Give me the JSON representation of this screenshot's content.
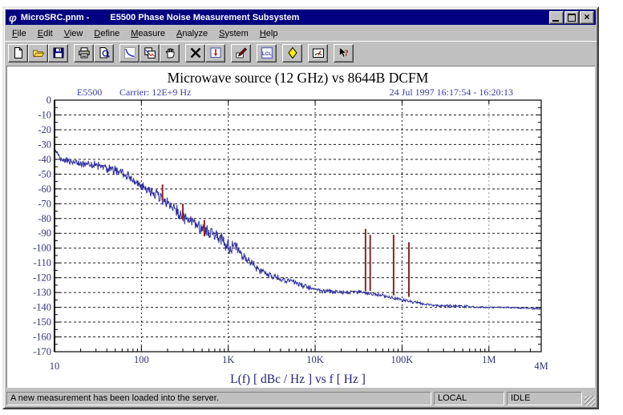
{
  "window": {
    "title_doc": "MicroSRC.pnm -",
    "title_app": "E5500 Phase Noise Measurement Subsystem",
    "icon": "phi-app-icon",
    "buttons": [
      "minimize",
      "maximize",
      "close"
    ]
  },
  "menu": {
    "items": [
      "File",
      "Edit",
      "View",
      "Define",
      "Measure",
      "Analyze",
      "System",
      "Help"
    ]
  },
  "toolbar": {
    "groups": [
      [
        {
          "name": "new",
          "icon": "new-page-icon"
        },
        {
          "name": "open",
          "icon": "open-folder-icon"
        },
        {
          "name": "save",
          "icon": "floppy-disk-icon"
        }
      ],
      [
        {
          "name": "print",
          "icon": "printer-icon"
        },
        {
          "name": "print-preview",
          "icon": "preview-magnifier-icon"
        }
      ],
      [
        {
          "name": "show-curve",
          "icon": "blue-curve-icon"
        },
        {
          "name": "overlay-plots",
          "icon": "overlay-plots-icon"
        },
        {
          "name": "pan",
          "icon": "hand-icon"
        }
      ],
      [
        {
          "name": "abort",
          "icon": "black-x-icon"
        },
        {
          "name": "measurement-plot",
          "icon": "plot-red-arrow-icon"
        }
      ],
      [
        {
          "name": "marker",
          "icon": "pen-icon"
        }
      ],
      [
        {
          "name": "confidence-limits",
          "icon": "lcl-icon"
        }
      ],
      [
        {
          "name": "spurs",
          "icon": "yellow-diamond-icon"
        }
      ],
      [
        {
          "name": "meter",
          "icon": "gauge-icon"
        }
      ],
      [
        {
          "name": "context-help",
          "icon": "help-arrow-icon"
        }
      ]
    ]
  },
  "chart_data": {
    "type": "line",
    "title": "Microwave source (12 GHz) vs 8644B DCFM",
    "annotation_left_system": "E5500",
    "annotation_left_carrier": "Carrier: 12E+9 Hz",
    "annotation_right": "24 Jul 1997  16:17:54 - 16:20:13",
    "xlabel": "L(f)  [ dBc / Hz ]  vs  f  [ Hz ]",
    "x_scale": "log",
    "xlim": [
      10,
      4000000
    ],
    "ylim": [
      -170,
      0
    ],
    "y_tick_step": 10,
    "grid": "dashed",
    "x_tick_labels": [
      {
        "f": 10,
        "label": "10",
        "low": true
      },
      {
        "f": 100,
        "label": "100"
      },
      {
        "f": 1000,
        "label": "1K"
      },
      {
        "f": 10000,
        "label": "10K"
      },
      {
        "f": 100000,
        "label": "100K"
      },
      {
        "f": 1000000,
        "label": "1M"
      },
      {
        "f": 4000000,
        "label": "4M",
        "low": true
      }
    ],
    "colors": {
      "trace": "#2e2e9e",
      "spur": "#8b2626",
      "grid": "#1a1a1a",
      "grid_light": "#999999",
      "tick_text": "#333377",
      "annotation": "#3a3aa8",
      "axis_label": "#222277",
      "title": "#000000"
    },
    "series": [
      {
        "name": "phase-noise-trace",
        "points": [
          [
            10,
            -33,
            0.3
          ],
          [
            12,
            -40,
            1.5
          ],
          [
            20,
            -43,
            2.5
          ],
          [
            30,
            -44,
            2.5
          ],
          [
            50,
            -47,
            3
          ],
          [
            70,
            -51,
            3
          ],
          [
            100,
            -57,
            3.5
          ],
          [
            150,
            -63,
            3.5
          ],
          [
            220,
            -72,
            3.5
          ],
          [
            320,
            -80,
            4
          ],
          [
            500,
            -87,
            4
          ],
          [
            700,
            -91,
            4.5
          ],
          [
            1000,
            -98,
            5
          ],
          [
            1300,
            -101,
            4
          ],
          [
            1600,
            -107,
            3
          ],
          [
            2200,
            -114,
            2.5
          ],
          [
            3200,
            -119,
            2
          ],
          [
            5000,
            -122,
            1.8
          ],
          [
            8000,
            -126,
            1.5
          ],
          [
            12000,
            -129,
            1.2
          ],
          [
            20000,
            -130,
            1.2
          ],
          [
            35000,
            -130,
            1
          ],
          [
            60000,
            -132,
            1
          ],
          [
            100000,
            -135,
            0.9
          ],
          [
            150000,
            -137,
            0.8
          ],
          [
            250000,
            -139,
            0.6
          ],
          [
            430000,
            -139,
            1.0
          ],
          [
            700000,
            -140,
            0.5
          ],
          [
            1500000,
            -140,
            0.5
          ],
          [
            4000000,
            -141,
            0.5
          ]
        ]
      }
    ],
    "spurs": [
      {
        "f": 175,
        "top": -57,
        "base": -68
      },
      {
        "f": 300,
        "top": -70,
        "base": -81
      },
      {
        "f": 530,
        "top": -81,
        "base": -92
      },
      {
        "f": 38000,
        "top": -87,
        "base": -129
      },
      {
        "f": 43000,
        "top": -91,
        "base": -129
      },
      {
        "f": 80000,
        "top": -91,
        "base": -132
      },
      {
        "f": 120000,
        "top": -96,
        "base": -133
      }
    ]
  },
  "status_bar": {
    "message": "A new measurement has been loaded into the server.",
    "panels": [
      "LOCAL",
      "IDLE"
    ]
  }
}
